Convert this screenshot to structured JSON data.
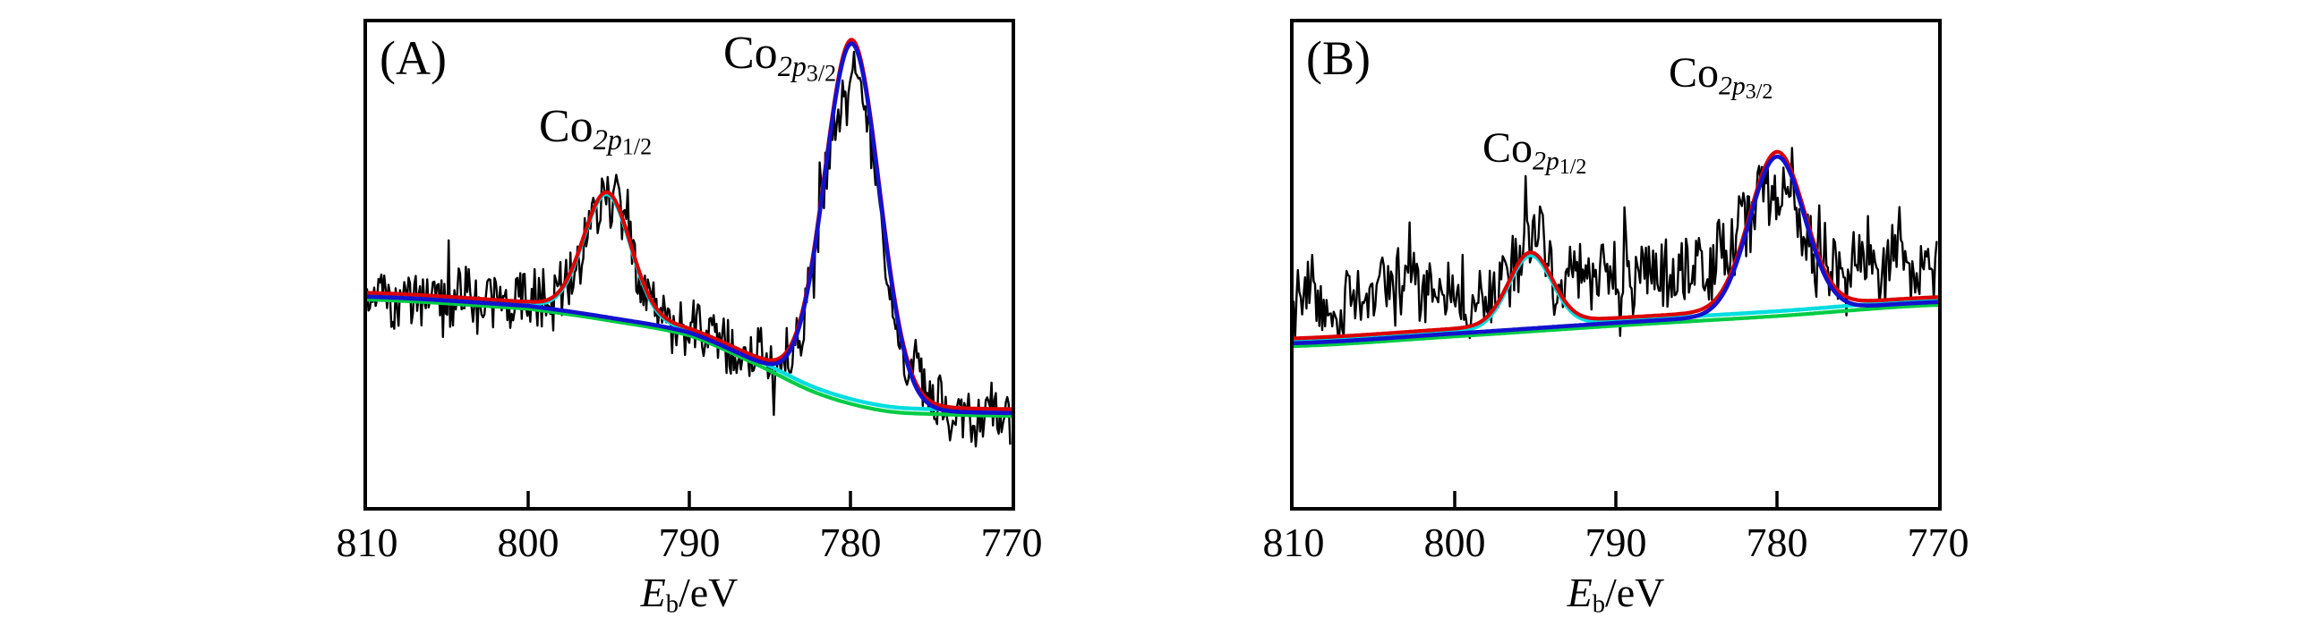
{
  "figure_background": "#ffffff",
  "chart_data": [
    {
      "type": "line",
      "panel_label": "(A)",
      "xlabel": {
        "main": "E",
        "sub": "b",
        "rest": "/eV"
      },
      "x_ticks": [
        810,
        800,
        790,
        780,
        770
      ],
      "x_range": [
        810,
        770
      ],
      "x_axis_reversed": true,
      "x_unit": "eV",
      "y_axis_note": "intensity, arbitrary units (no y axis drawn)",
      "grid": false,
      "legend": false,
      "peaks": [
        {
          "name": "Co 2p1/2",
          "label": {
            "pre": "Co",
            "sub": "2p",
            "subsub": "1/2"
          },
          "center_ev": 795.1,
          "amplitude": 0.25,
          "sigma_ev": 1.45,
          "color": "#00dde0"
        },
        {
          "name": "Co 2p3/2",
          "label": {
            "pre": "Co",
            "sub": "2p",
            "subsub": "3/2"
          },
          "center_ev": 779.9,
          "amplitude": 0.738,
          "sigma_ev": 1.7,
          "color": "#1212cf"
        }
      ],
      "background": {
        "name": "baseline",
        "color": "#00cc44",
        "points": [
          [
            810,
            0.434
          ],
          [
            800,
            0.415
          ],
          [
            795,
            0.391
          ],
          [
            790,
            0.36
          ],
          [
            786,
            0.303
          ],
          [
            782,
            0.24
          ],
          [
            778,
            0.205
          ],
          [
            774,
            0.197
          ],
          [
            770,
            0.194
          ]
        ]
      },
      "envelope": {
        "name": "total fit",
        "color": "#dd0000",
        "offset": 0.008
      },
      "raw": {
        "name": "measured spectrum",
        "color": "#000000",
        "noise_amplitude": 0.075,
        "band_offset": 0.01,
        "peak_follow": 0.9,
        "seed": 9001
      }
    },
    {
      "type": "line",
      "panel_label": "(B)",
      "xlabel": {
        "main": "E",
        "sub": "b",
        "rest": "/eV"
      },
      "x_ticks": [
        810,
        800,
        790,
        780,
        770
      ],
      "x_range": [
        810,
        770
      ],
      "x_axis_reversed": true,
      "x_unit": "eV",
      "y_axis_note": "intensity, arbitrary units (no y axis drawn)",
      "grid": false,
      "legend": false,
      "peaks": [
        {
          "name": "Co 2p1/2",
          "label": {
            "pre": "Co",
            "sub": "2p",
            "subsub": "1/2"
          },
          "center_ev": 795.3,
          "amplitude": 0.147,
          "sigma_ev": 1.35,
          "color": "#00dde0"
        },
        {
          "name": "Co 2p3/2",
          "label": {
            "pre": "Co",
            "sub": "2p",
            "subsub": "3/2"
          },
          "center_ev": 780.0,
          "amplitude": 0.323,
          "sigma_ev": 1.7,
          "color": "#1212cf"
        }
      ],
      "background": {
        "name": "baseline",
        "color": "#00cc44",
        "points": [
          [
            810,
            0.338
          ],
          [
            800,
            0.358
          ],
          [
            790,
            0.38
          ],
          [
            780,
            0.4
          ],
          [
            770,
            0.423
          ]
        ]
      },
      "envelope": {
        "name": "total fit",
        "color": "#dd0000",
        "offset": 0.01
      },
      "raw": {
        "name": "measured spectrum",
        "color": "#000000",
        "noise_amplitude": 0.098,
        "band_offset": 0.09,
        "peak_follow": 0.55,
        "seed": 7702
      }
    }
  ]
}
